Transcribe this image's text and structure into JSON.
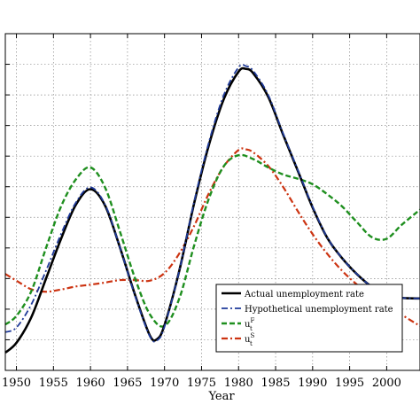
{
  "chart_data": {
    "type": "line",
    "title": "",
    "xlabel": "Year",
    "ylabel": "",
    "xlim": [
      1948.5,
      2004.5
    ],
    "xticks": [
      1950,
      1955,
      1960,
      1965,
      1970,
      1975,
      1980,
      1985,
      1990,
      1995,
      2000
    ],
    "xtick_labels": [
      "1950",
      "1955",
      "1960",
      "1965",
      "1970",
      "1975",
      "1980",
      "1985",
      "1990",
      "1995",
      "2000"
    ],
    "ylim": [
      0,
      11
    ],
    "yticks": [
      0,
      1,
      2,
      3,
      4,
      5,
      6,
      7,
      8,
      9,
      10
    ],
    "grid": true,
    "legend_position": "lower-right",
    "series": [
      {
        "name": "Actual unemployment rate",
        "color": "#000000",
        "style": "solid",
        "x": [
          1948.5,
          1950,
          1952,
          1954,
          1956,
          1958,
          1960,
          1962,
          1964,
          1966,
          1968,
          1969,
          1970,
          1972,
          1974,
          1976,
          1978,
          1980,
          1981,
          1982,
          1984,
          1986,
          1988,
          1990,
          1992,
          1994,
          1996,
          1998,
          2000,
          2002,
          2004.5
        ],
        "y": [
          0.58,
          0.9,
          1.73,
          3.0,
          4.28,
          5.4,
          5.92,
          5.37,
          4.0,
          2.48,
          1.15,
          1.02,
          1.48,
          3.26,
          5.46,
          7.37,
          8.86,
          9.76,
          9.85,
          9.7,
          8.94,
          7.71,
          6.52,
          5.32,
          4.32,
          3.66,
          3.14,
          2.73,
          2.48,
          2.37,
          2.35
        ]
      },
      {
        "name": "Hypothetical unemployment rate",
        "color": "#1f3a99",
        "style": "dashdot",
        "x": [
          1948.5,
          1950,
          1952,
          1954,
          1956,
          1958,
          1960,
          1962,
          1964,
          1966,
          1968,
          1969,
          1970,
          1972,
          1974,
          1976,
          1978,
          1980,
          1981,
          1982,
          1984,
          1986,
          1988,
          1990,
          1992,
          1994,
          1996,
          1998,
          2000,
          2002,
          2004.5
        ],
        "y": [
          1.25,
          1.4,
          2.15,
          3.26,
          4.44,
          5.47,
          5.98,
          5.4,
          4.0,
          2.45,
          1.12,
          0.98,
          1.43,
          3.26,
          5.51,
          7.46,
          8.99,
          9.9,
          9.94,
          9.78,
          9.0,
          7.75,
          6.55,
          5.35,
          4.33,
          3.66,
          3.14,
          2.73,
          2.48,
          2.37,
          2.35
        ]
      },
      {
        "name": "u_t^F",
        "color": "#1f8f1f",
        "style": "dashed",
        "x": [
          1948.5,
          1950,
          1952,
          1954,
          1956,
          1958,
          1960,
          1962,
          1964,
          1966,
          1968,
          1970,
          1972,
          1974,
          1976,
          1978,
          1980,
          1982,
          1984,
          1986,
          1988,
          1990,
          1992,
          1994,
          1996,
          1998,
          2000,
          2002,
          2004.5
        ],
        "y": [
          1.5,
          1.78,
          2.58,
          4.0,
          5.34,
          6.23,
          6.63,
          5.96,
          4.52,
          3.02,
          1.84,
          1.45,
          2.35,
          4.08,
          5.62,
          6.67,
          7.03,
          6.9,
          6.63,
          6.4,
          6.26,
          6.08,
          5.75,
          5.35,
          4.84,
          4.35,
          4.3,
          4.75,
          5.25
        ]
      },
      {
        "name": "u_t^S",
        "color": "#cc3311",
        "style": "dashdot",
        "x": [
          1948.5,
          1950,
          1952,
          1954,
          1956,
          1958,
          1960,
          1962,
          1964,
          1966,
          1968,
          1970,
          1972,
          1974,
          1976,
          1978,
          1980,
          1981,
          1982,
          1984,
          1986,
          1988,
          1990,
          1992,
          1994,
          1996,
          1998,
          2000,
          2002,
          2004.5
        ],
        "y": [
          3.15,
          2.93,
          2.65,
          2.57,
          2.64,
          2.74,
          2.8,
          2.87,
          2.95,
          2.95,
          2.93,
          3.18,
          3.82,
          4.72,
          5.79,
          6.66,
          7.2,
          7.22,
          7.12,
          6.68,
          6.0,
          5.2,
          4.45,
          3.8,
          3.25,
          2.8,
          2.44,
          2.11,
          1.82,
          1.45
        ]
      }
    ],
    "legend": [
      {
        "main": "Actual unemployment rate",
        "sup": "",
        "sub": ""
      },
      {
        "main": "Hypothetical unemployment rate",
        "sup": "",
        "sub": ""
      },
      {
        "main": "u",
        "sup": "F",
        "sub": "t"
      },
      {
        "main": "u",
        "sup": "S",
        "sub": "t"
      }
    ]
  }
}
